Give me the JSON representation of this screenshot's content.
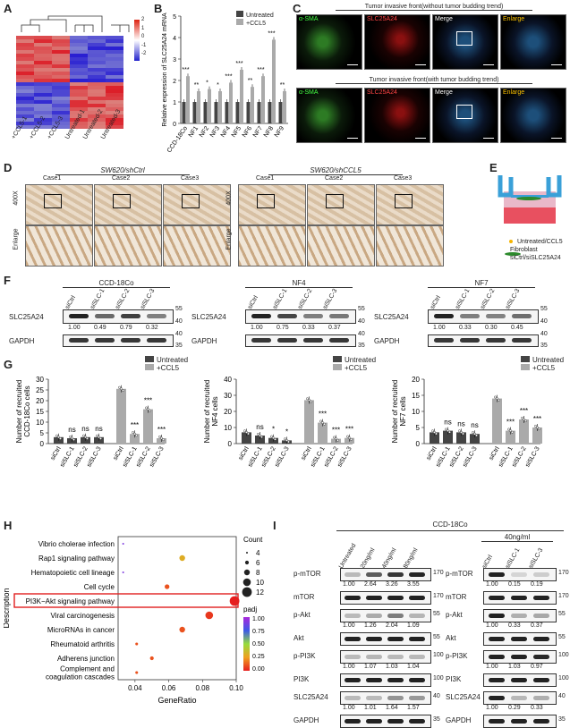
{
  "panels": {
    "A": "A",
    "B": "B",
    "C": "C",
    "D": "D",
    "E": "E",
    "F": "F",
    "G": "G",
    "H": "H",
    "I": "I"
  },
  "A": {
    "scale": [
      "2",
      "1",
      "0",
      "-1",
      "-2"
    ],
    "samples": [
      "+CCL5-1",
      "+CCL5-2",
      "+CCL5-3",
      "Untreated-1",
      "Untreated-2",
      "Untreated-3"
    ]
  },
  "B": {
    "legend": [
      "Untreated",
      "+CCL5"
    ],
    "ylabel": "Relative expression of SLC25A24 mRNA",
    "categories": [
      "CCD-18Co",
      "NF1",
      "NF2",
      "NF3",
      "NF4",
      "NF5",
      "NF6",
      "NF7",
      "NF8",
      "NF9"
    ],
    "sig": [
      "***",
      "**",
      "*",
      "*",
      "***",
      "***",
      "**",
      "***",
      "***",
      "**"
    ],
    "yticks": [
      "0",
      "1",
      "2",
      "3",
      "4",
      "5"
    ]
  },
  "C": {
    "title1": "Tumor invasive front(without tumor budding trend)",
    "title2": "Tumor invasive front(with tumor budding trend)",
    "channels": [
      "α-SMA",
      "SLC25A24",
      "Merge",
      "Enlarge"
    ]
  },
  "D": {
    "group1": "SW620/shCtrl",
    "group2": "SW620/shCCL5",
    "cases": [
      "Case1",
      "Case2",
      "Case3"
    ],
    "mag": "400X",
    "enlarge": "Enlarge"
  },
  "E": {
    "legend1": "Untreated/CCL5",
    "legend2": "Fibroblast",
    "legend3": "siCtrl/siSLC25A24"
  },
  "F": {
    "blots": [
      {
        "title": "CCD-18Co",
        "values": [
          "1.00",
          "0.49",
          "0.79",
          "0.32"
        ]
      },
      {
        "title": "NF4",
        "values": [
          "1.00",
          "0.75",
          "0.33",
          "0.37"
        ]
      },
      {
        "title": "NF7",
        "values": [
          "1.00",
          "0.33",
          "0.30",
          "0.45"
        ]
      }
    ],
    "lanes": [
      "siCtrl",
      "siSLC-1",
      "siSLC-2",
      "siSLC-3"
    ],
    "proteins": [
      "SLC25A24",
      "GAPDH"
    ],
    "mw": [
      "55",
      "40",
      "40",
      "35"
    ]
  },
  "G": {
    "legend": [
      "Untreated",
      "+CCL5"
    ],
    "plots": [
      {
        "ylabel": "Number of recruited CCD-18Co cells",
        "yticks": [
          "0",
          "5",
          "10",
          "15",
          "20",
          "25",
          "30"
        ],
        "sig": [
          "ns",
          "ns",
          "ns",
          "***",
          "***",
          "***"
        ]
      },
      {
        "ylabel": "Number of recruited NF4 cells",
        "yticks": [
          "0",
          "10",
          "20",
          "30",
          "40"
        ],
        "sig": [
          "ns",
          "*",
          "*",
          "***",
          "***",
          "***"
        ]
      },
      {
        "ylabel": "Number of recruited NF7 cells",
        "yticks": [
          "0",
          "5",
          "10",
          "15",
          "20"
        ],
        "sig": [
          "ns",
          "ns",
          "ns",
          "***",
          "***",
          "***"
        ]
      }
    ],
    "lanes": [
      "siCtrl",
      "siSLC-1",
      "siSLC-2",
      "siSLC-3",
      "siCtrl",
      "siSLC-1",
      "siSLC-2",
      "siSLC-3"
    ]
  },
  "chart_data": [
    {
      "type": "bar",
      "title": "",
      "ylabel": "Relative expression of SLC25A24 mRNA",
      "categories": [
        "CCD-18Co",
        "NF1",
        "NF2",
        "NF3",
        "NF4",
        "NF5",
        "NF6",
        "NF7",
        "NF8",
        "NF9"
      ],
      "ylim": [
        0,
        5
      ],
      "series": [
        {
          "name": "Untreated",
          "values": [
            1.0,
            1.0,
            1.0,
            1.0,
            1.0,
            1.0,
            1.0,
            1.0,
            1.0,
            1.0
          ]
        },
        {
          "name": "+CCL5",
          "values": [
            2.2,
            1.5,
            1.6,
            1.5,
            1.9,
            2.5,
            1.7,
            2.2,
            3.9,
            1.5
          ]
        }
      ]
    },
    {
      "type": "bar",
      "ylabel": "Number of recruited CCD-18Co cells",
      "categories": [
        "siCtrl",
        "siSLC-1",
        "siSLC-2",
        "siSLC-3",
        "siCtrl",
        "siSLC-1",
        "siSLC-2",
        "siSLC-3"
      ],
      "ylim": [
        0,
        30
      ],
      "values": [
        3,
        2.5,
        3,
        3,
        25.5,
        4.5,
        16,
        2.5
      ],
      "groups": [
        "Untreated",
        "Untreated",
        "Untreated",
        "Untreated",
        "+CCL5",
        "+CCL5",
        "+CCL5",
        "+CCL5"
      ]
    },
    {
      "type": "bar",
      "ylabel": "Number of recruited NF4 cells",
      "categories": [
        "siCtrl",
        "siSLC-1",
        "siSLC-2",
        "siSLC-3",
        "siCtrl",
        "siSLC-1",
        "siSLC-2",
        "siSLC-3"
      ],
      "ylim": [
        0,
        40
      ],
      "values": [
        7,
        5,
        3.5,
        2,
        27,
        13,
        3,
        3.5
      ],
      "groups": [
        "Untreated",
        "Untreated",
        "Untreated",
        "Untreated",
        "+CCL5",
        "+CCL5",
        "+CCL5",
        "+CCL5"
      ]
    },
    {
      "type": "bar",
      "ylabel": "Number of recruited NF7 cells",
      "categories": [
        "siCtrl",
        "siSLC-1",
        "siSLC-2",
        "siSLC-3",
        "siCtrl",
        "siSLC-1",
        "siSLC-2",
        "siSLC-3"
      ],
      "ylim": [
        0,
        20
      ],
      "values": [
        3.5,
        4,
        3.5,
        3,
        14,
        4,
        7.5,
        5
      ],
      "groups": [
        "Untreated",
        "Untreated",
        "Untreated",
        "Untreated",
        "+CCL5",
        "+CCL5",
        "+CCL5",
        "+CCL5"
      ]
    },
    {
      "type": "scatter",
      "xlabel": "GeneRatio",
      "ylabel": "Description",
      "xlim": [
        0.03,
        0.1
      ],
      "xticks": [
        "0.04",
        "0.06",
        "0.08",
        "0.10"
      ],
      "categories": [
        "Vibrio cholerae infection",
        "Rap1 signaling pathway",
        "Hematopoietic cell lineage",
        "Cell cycle",
        "PI3K−Akt signaling pathway",
        "Viral carcinogenesis",
        "MicroRNAs in cancer",
        "Rheumatoid arthritis",
        "Adherens junction",
        "Complement and coagulation cascades"
      ],
      "x": [
        0.033,
        0.068,
        0.033,
        0.059,
        0.099,
        0.084,
        0.068,
        0.041,
        0.05,
        0.041
      ],
      "count": [
        4,
        8,
        4,
        7,
        12,
        10,
        8,
        5,
        6,
        5
      ],
      "padj": [
        0.9,
        0.3,
        0.9,
        0.1,
        0.0,
        0.05,
        0.1,
        0.1,
        0.1,
        0.1
      ],
      "size_legend_title": "Count",
      "size_legend": [
        "4",
        "6",
        "8",
        "10",
        "12"
      ],
      "color_legend_title": "padj",
      "color_legend": [
        "1.00",
        "0.75",
        "0.50",
        "0.25",
        "0.00"
      ]
    }
  ],
  "I": {
    "title": "CCD-18Co",
    "dose_header": "40ng/ml",
    "lanes_left": [
      "Untreated",
      "20ng/ml",
      "40ng/ml",
      "80ng/ml"
    ],
    "lanes_right": [
      "siCtrl",
      "siSLC-1",
      "siSLC-3"
    ],
    "rows": [
      {
        "name": "p-mTOR",
        "left": [
          "1.00",
          "2.64",
          "3.26",
          "3.55"
        ],
        "right": [
          "1.00",
          "0.15",
          "0.19"
        ],
        "mw": "170"
      },
      {
        "name": "mTOR",
        "left": [],
        "right": [],
        "mw": "170"
      },
      {
        "name": "p-Akt",
        "left": [
          "1.00",
          "1.26",
          "2.04",
          "1.09"
        ],
        "right": [
          "1.00",
          "0.33",
          "0.37"
        ],
        "mw": "55"
      },
      {
        "name": "Akt",
        "left": [],
        "right": [],
        "mw": "55"
      },
      {
        "name": "p-PI3K",
        "left": [
          "1.00",
          "1.07",
          "1.03",
          "1.04"
        ],
        "right": [
          "1.00",
          "1.03",
          "0.97"
        ],
        "mw": "100"
      },
      {
        "name": "PI3K",
        "left": [],
        "right": [],
        "mw": "100"
      },
      {
        "name": "SLC25A24",
        "left": [
          "1.00",
          "1.01",
          "1.64",
          "1.57"
        ],
        "right": [
          "1.00",
          "0.29",
          "0.33"
        ],
        "mw": "40"
      },
      {
        "name": "GAPDH",
        "left": [],
        "right": [],
        "mw": "35"
      }
    ]
  },
  "colors": {
    "untreated": "#444444",
    "ccl5": "#aaaaaa",
    "highlight": "#e02020"
  }
}
